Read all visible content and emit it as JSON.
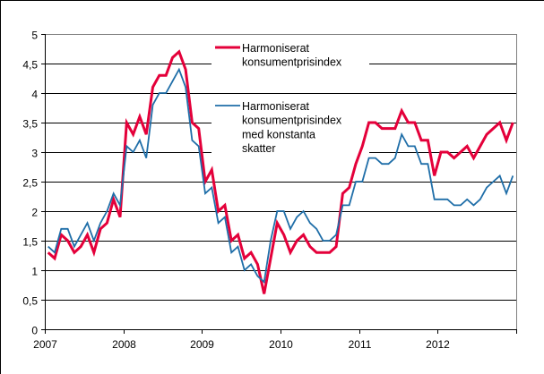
{
  "chart_data": {
    "type": "line",
    "title": "",
    "xlabel": "",
    "ylabel": "",
    "ylim": [
      0,
      5
    ],
    "yticks": [
      "0",
      "0,5",
      "1",
      "1,5",
      "2",
      "2,5",
      "3",
      "3,5",
      "4",
      "4,5",
      "5"
    ],
    "ytick_values": [
      0,
      0.5,
      1,
      1.5,
      2,
      2.5,
      3,
      3.5,
      4,
      4.5,
      5
    ],
    "xticks": [
      "2007",
      "2008",
      "2009",
      "2010",
      "2011",
      "2012"
    ],
    "x_period": "monthly, Jan 2007 – Dec 2012",
    "grid": true,
    "legend_position": "upper center, inside plot",
    "series": [
      {
        "name": "Harmoniserat konsumentprisindex",
        "legend_lines": [
          "Harmoniserat",
          "konsumentprisindex"
        ],
        "color": "#E4003A",
        "width": 3,
        "values": [
          1.3,
          1.2,
          1.6,
          1.5,
          1.3,
          1.4,
          1.6,
          1.3,
          1.7,
          1.8,
          2.2,
          1.9,
          3.5,
          3.3,
          3.6,
          3.3,
          4.1,
          4.3,
          4.3,
          4.6,
          4.7,
          4.4,
          3.5,
          3.4,
          2.5,
          2.7,
          2.0,
          2.1,
          1.5,
          1.6,
          1.2,
          1.3,
          1.1,
          0.6,
          1.2,
          1.8,
          1.6,
          1.3,
          1.5,
          1.6,
          1.4,
          1.3,
          1.3,
          1.3,
          1.4,
          2.3,
          2.4,
          2.8,
          3.1,
          3.5,
          3.5,
          3.4,
          3.4,
          3.4,
          3.7,
          3.5,
          3.5,
          3.2,
          3.2,
          2.6,
          3.0,
          3.0,
          2.9,
          3.0,
          3.1,
          2.9,
          3.1,
          3.3,
          3.4,
          3.5,
          3.2,
          3.5
        ]
      },
      {
        "name": "Harmoniserat konsumentprisindex med konstanta skatter",
        "legend_lines": [
          "Harmoniserat",
          "konsumentprisindex",
          "med konstanta",
          "skatter"
        ],
        "color": "#1F6EA8",
        "width": 1.8,
        "values": [
          1.4,
          1.3,
          1.7,
          1.7,
          1.4,
          1.6,
          1.8,
          1.5,
          1.8,
          2.0,
          2.3,
          2.1,
          3.1,
          3.0,
          3.2,
          2.9,
          3.8,
          4.0,
          4.0,
          4.2,
          4.4,
          4.1,
          3.2,
          3.1,
          2.3,
          2.4,
          1.8,
          1.9,
          1.3,
          1.4,
          1.0,
          1.1,
          0.9,
          0.8,
          1.5,
          2.0,
          2.0,
          1.7,
          1.9,
          2.0,
          1.8,
          1.7,
          1.5,
          1.5,
          1.6,
          2.1,
          2.1,
          2.5,
          2.5,
          2.9,
          2.9,
          2.8,
          2.8,
          2.9,
          3.3,
          3.1,
          3.1,
          2.8,
          2.8,
          2.2,
          2.2,
          2.2,
          2.1,
          2.1,
          2.2,
          2.1,
          2.2,
          2.4,
          2.5,
          2.6,
          2.3,
          2.6
        ]
      }
    ]
  },
  "style": {
    "gridline_color": "#000000",
    "plot_border_color": "#808080",
    "legend_bg": "#ffffff"
  }
}
